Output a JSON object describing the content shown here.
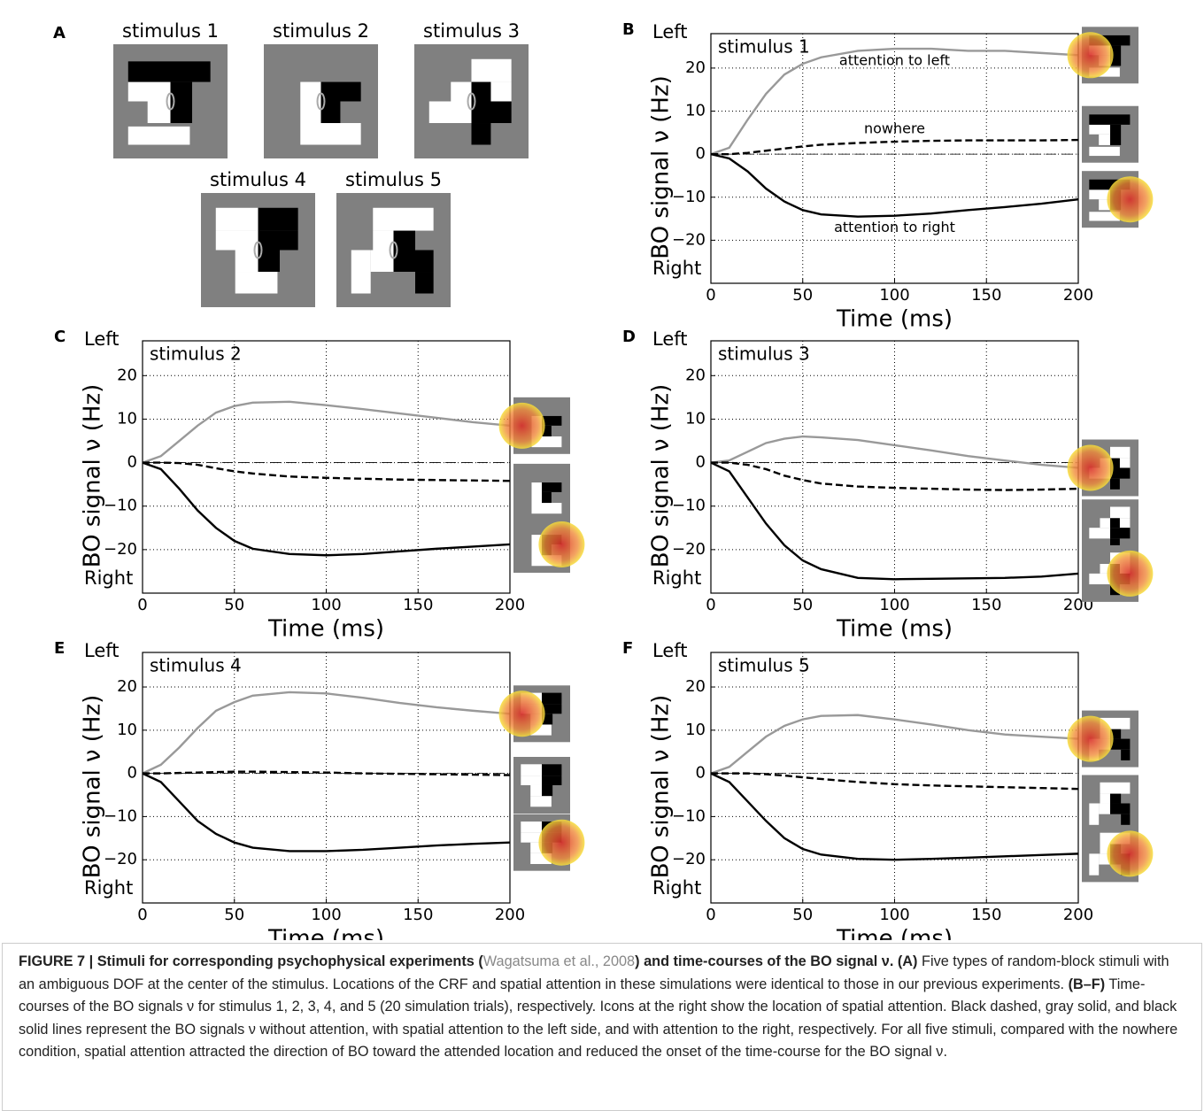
{
  "panel_a": {
    "letter": "A",
    "stimuli": [
      "stimulus 1",
      "stimulus 2",
      "stimulus 3",
      "stimulus 4",
      "stimulus 5"
    ]
  },
  "chart_data": [
    {
      "type": "line",
      "panel": "B",
      "title": "stimulus 1",
      "xlabel": "Time (ms)",
      "ylabel": "BO signal ν (Hz)",
      "y_top_label": "Left",
      "y_bottom_label": "Right",
      "x": [
        0,
        10,
        20,
        30,
        40,
        50,
        60,
        80,
        100,
        120,
        140,
        160,
        180,
        200
      ],
      "series": [
        {
          "name": "attention to left",
          "color": "#999999",
          "dashed": false,
          "values": [
            0,
            1.5,
            8,
            14,
            18.5,
            21,
            22.5,
            24,
            24.5,
            24.5,
            24,
            24,
            23.5,
            23
          ]
        },
        {
          "name": "nowhere",
          "color": "#000000",
          "dashed": true,
          "values": [
            0,
            0,
            0.3,
            0.8,
            1.3,
            1.8,
            2.2,
            2.6,
            2.9,
            3.1,
            3.2,
            3.2,
            3.2,
            3.3
          ]
        },
        {
          "name": "attention to right",
          "color": "#000000",
          "dashed": false,
          "values": [
            0,
            -1,
            -4,
            -8,
            -11,
            -13,
            -14,
            -14.5,
            -14.3,
            -13.8,
            -13,
            -12.3,
            -11.5,
            -10.5
          ]
        }
      ],
      "xlim": [
        0,
        200
      ],
      "xticks": [
        0,
        50,
        100,
        150,
        200
      ],
      "ylim": [
        -30,
        28
      ],
      "yticks": [
        {
          "value": -20,
          "label": "−20"
        },
        {
          "value": -10,
          "label": "−10"
        },
        0,
        10,
        20
      ],
      "grid": true,
      "zero_line": true
    },
    {
      "type": "line",
      "panel": "C",
      "title": "stimulus 2",
      "xlabel": "Time (ms)",
      "ylabel": "BO signal ν (Hz)",
      "y_top_label": "Left",
      "y_bottom_label": "Right",
      "x": [
        0,
        10,
        20,
        30,
        40,
        50,
        60,
        80,
        100,
        120,
        140,
        160,
        180,
        200
      ],
      "series": [
        {
          "color": "#999999",
          "dashed": false,
          "values": [
            0,
            1.5,
            5,
            8.5,
            11.5,
            13,
            13.8,
            14,
            13.2,
            12.3,
            11.3,
            10.3,
            9.3,
            8.5
          ]
        },
        {
          "color": "#000000",
          "dashed": true,
          "values": [
            0,
            0,
            -0.1,
            -0.5,
            -1.3,
            -2,
            -2.5,
            -3.2,
            -3.5,
            -3.7,
            -3.9,
            -4,
            -4.1,
            -4.2
          ]
        },
        {
          "color": "#000000",
          "dashed": false,
          "values": [
            0,
            -1.5,
            -6,
            -11,
            -15,
            -18,
            -19.8,
            -21,
            -21.3,
            -21,
            -20.4,
            -19.8,
            -19.3,
            -18.8
          ]
        }
      ],
      "xlim": [
        0,
        200
      ],
      "xticks": [
        0,
        50,
        100,
        150,
        200
      ],
      "ylim": [
        -30,
        28
      ],
      "yticks": [
        {
          "value": -20,
          "label": "−20"
        },
        {
          "value": -10,
          "label": "−10"
        },
        0,
        10,
        20
      ],
      "grid": true,
      "zero_line": true
    },
    {
      "type": "line",
      "panel": "D",
      "title": "stimulus 3",
      "xlabel": "Time (ms)",
      "ylabel": "BO signal ν (Hz)",
      "y_top_label": "Left",
      "y_bottom_label": "Right",
      "x": [
        0,
        10,
        20,
        30,
        40,
        50,
        60,
        80,
        100,
        120,
        140,
        160,
        180,
        200
      ],
      "series": [
        {
          "color": "#999999",
          "dashed": false,
          "values": [
            0,
            0.5,
            2.5,
            4.5,
            5.5,
            6,
            5.8,
            5.2,
            4,
            2.8,
            1.5,
            0.5,
            -0.5,
            -1.2
          ]
        },
        {
          "color": "#000000",
          "dashed": true,
          "values": [
            0,
            0,
            -0.5,
            -1.5,
            -3,
            -4,
            -4.8,
            -5.5,
            -5.8,
            -6,
            -6.2,
            -6.3,
            -6.2,
            -6
          ]
        },
        {
          "color": "#000000",
          "dashed": false,
          "values": [
            0,
            -2,
            -8,
            -14,
            -19,
            -22.5,
            -24.5,
            -26.5,
            -26.8,
            -26.7,
            -26.6,
            -26.5,
            -26.2,
            -25.5
          ]
        }
      ],
      "xlim": [
        0,
        200
      ],
      "xticks": [
        0,
        50,
        100,
        150,
        200
      ],
      "ylim": [
        -30,
        28
      ],
      "yticks": [
        {
          "value": -20,
          "label": "−20"
        },
        {
          "value": -10,
          "label": "−10"
        },
        0,
        10,
        20
      ],
      "grid": true,
      "zero_line": true
    },
    {
      "type": "line",
      "panel": "E",
      "title": "stimulus 4",
      "xlabel": "Time (ms)",
      "ylabel": "BO signal ν (Hz)",
      "y_top_label": "Left",
      "y_bottom_label": "Right",
      "x": [
        0,
        10,
        20,
        30,
        40,
        50,
        60,
        80,
        100,
        120,
        140,
        160,
        180,
        200
      ],
      "series": [
        {
          "color": "#999999",
          "dashed": false,
          "values": [
            0,
            2,
            6,
            10.5,
            14.5,
            16.5,
            18,
            18.8,
            18.5,
            17.5,
            16.3,
            15.3,
            14.5,
            13.8
          ]
        },
        {
          "color": "#000000",
          "dashed": true,
          "values": [
            0,
            0,
            0.1,
            0.2,
            0.3,
            0.4,
            0.4,
            0.3,
            0.2,
            0,
            -0.1,
            -0.2,
            -0.3,
            -0.4
          ]
        },
        {
          "color": "#000000",
          "dashed": false,
          "values": [
            0,
            -2,
            -6.5,
            -11,
            -14,
            -16,
            -17.2,
            -18,
            -18,
            -17.7,
            -17.2,
            -16.7,
            -16.3,
            -16
          ]
        }
      ],
      "xlim": [
        0,
        200
      ],
      "xticks": [
        0,
        50,
        100,
        150,
        200
      ],
      "ylim": [
        -30,
        28
      ],
      "yticks": [
        {
          "value": -20,
          "label": "−20"
        },
        {
          "value": -10,
          "label": "−10"
        },
        0,
        10,
        20
      ],
      "grid": true,
      "zero_line": true
    },
    {
      "type": "line",
      "panel": "F",
      "title": "stimulus 5",
      "xlabel": "Time (ms)",
      "ylabel": "BO signal ν (Hz)",
      "y_top_label": "Left",
      "y_bottom_label": "Right",
      "x": [
        0,
        10,
        20,
        30,
        40,
        50,
        60,
        80,
        100,
        120,
        140,
        160,
        180,
        200
      ],
      "series": [
        {
          "color": "#999999",
          "dashed": false,
          "values": [
            0,
            1.5,
            5,
            8.5,
            11,
            12.5,
            13.3,
            13.5,
            12.5,
            11.3,
            10,
            9,
            8.5,
            8
          ]
        },
        {
          "color": "#000000",
          "dashed": true,
          "values": [
            0,
            0,
            0,
            -0.2,
            -0.5,
            -0.9,
            -1.3,
            -2,
            -2.5,
            -2.8,
            -3,
            -3.2,
            -3.4,
            -3.6
          ]
        },
        {
          "color": "#000000",
          "dashed": false,
          "values": [
            0,
            -2,
            -6.5,
            -11,
            -15,
            -17.5,
            -18.8,
            -19.8,
            -20,
            -19.8,
            -19.5,
            -19.2,
            -18.9,
            -18.6
          ]
        }
      ],
      "xlim": [
        0,
        200
      ],
      "xticks": [
        0,
        50,
        100,
        150,
        200
      ],
      "ylim": [
        -30,
        28
      ],
      "yticks": [
        {
          "value": -20,
          "label": "−20"
        },
        {
          "value": -10,
          "label": "−10"
        },
        0,
        10,
        20
      ],
      "grid": true,
      "zero_line": true
    }
  ],
  "caption": {
    "figure_label": "FIGURE 7 | Stimuli for corresponding psychophysical experiments (",
    "citation": "Wagatsuma et al., 2008",
    "title_end": ") and time-courses of the BO signal ν.",
    "a_label": "(A)",
    "a_text": "Five types of random-block stimuli with an ambiguous DOF at the center of the stimulus. Locations of the CRF and spatial attention in these simulations were identical to those in our previous experiments.",
    "bf_label": "(B–F)",
    "bf_text": "Time-courses of the BO signals ν for stimulus 1, 2, 3, 4, and 5 (20 simulation trials), respectively. Icons at the right show the location of spatial attention. Black dashed, gray solid, and black solid lines represent the BO signals ν without attention, with spatial attention to the left side, and with attention to the right, respectively. For all five stimuli, compared with the nowhere condition, spatial attention attracted the direction of BO toward the attended location and reduced the onset of the time-course for the BO signal ν."
  }
}
